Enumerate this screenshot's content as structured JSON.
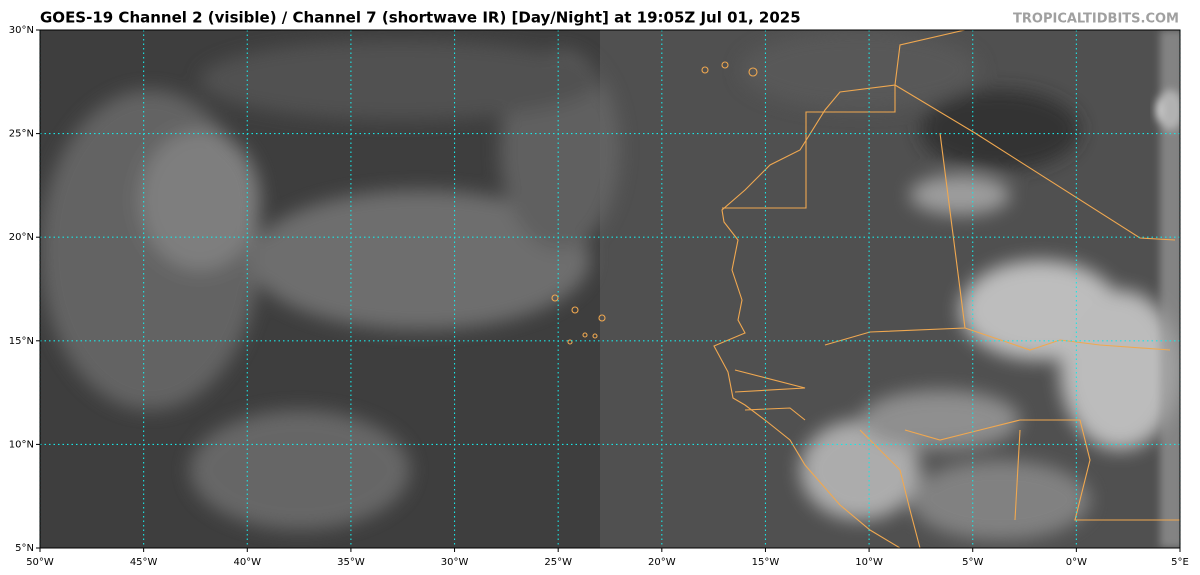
{
  "map": {
    "title": "GOES-19 Channel 2 (visible) / Channel 7 (shortwave IR) [Day/Night] at 19:05Z Jul 01, 2025",
    "credit": "TROPICALTIDBITS.COM",
    "xlim": [
      -50,
      5
    ],
    "ylim": [
      5,
      30
    ],
    "xticks": [
      {
        "value": -50,
        "label": "50°W"
      },
      {
        "value": -45,
        "label": "45°W"
      },
      {
        "value": -40,
        "label": "40°W"
      },
      {
        "value": -35,
        "label": "35°W"
      },
      {
        "value": -30,
        "label": "30°W"
      },
      {
        "value": -25,
        "label": "25°W"
      },
      {
        "value": -20,
        "label": "20°W"
      },
      {
        "value": -15,
        "label": "15°W"
      },
      {
        "value": -10,
        "label": "10°W"
      },
      {
        "value": -5,
        "label": "5°W"
      },
      {
        "value": 0,
        "label": "0°W"
      },
      {
        "value": 5,
        "label": "5°E"
      }
    ],
    "yticks": [
      {
        "value": 5,
        "label": "5°N"
      },
      {
        "value": 10,
        "label": "10°N"
      },
      {
        "value": 15,
        "label": "15°N"
      },
      {
        "value": 20,
        "label": "20°N"
      },
      {
        "value": 25,
        "label": "25°N"
      },
      {
        "value": 30,
        "label": "30°N"
      }
    ]
  }
}
